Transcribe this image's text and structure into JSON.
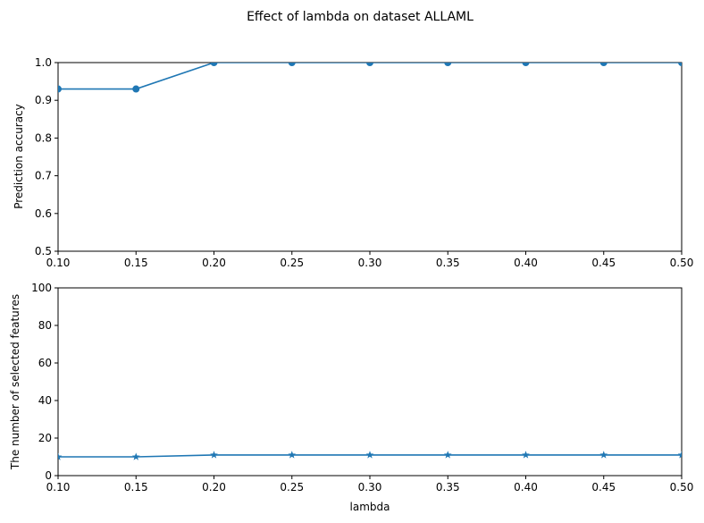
{
  "chart_data": [
    {
      "type": "line",
      "marker": "circle",
      "x": [
        0.1,
        0.15,
        0.2,
        0.25,
        0.3,
        0.35,
        0.4,
        0.45,
        0.5
      ],
      "series": [
        {
          "values": [
            0.93,
            0.93,
            1.0,
            1.0,
            1.0,
            1.0,
            1.0,
            1.0,
            1.0
          ],
          "color": "#1f77b4"
        }
      ],
      "xlim": [
        0.1,
        0.5
      ],
      "ylim": [
        0.5,
        1.0
      ],
      "xticks": [
        "0.10",
        "0.15",
        "0.20",
        "0.25",
        "0.30",
        "0.35",
        "0.40",
        "0.45",
        "0.50"
      ],
      "yticks": [
        "0.5",
        "0.6",
        "0.7",
        "0.8",
        "0.9",
        "1.0"
      ],
      "xlabel": "",
      "ylabel": "Prediction accuracy",
      "grid": false
    },
    {
      "type": "line",
      "marker": "star",
      "x": [
        0.1,
        0.15,
        0.2,
        0.25,
        0.3,
        0.35,
        0.4,
        0.45,
        0.5
      ],
      "series": [
        {
          "values": [
            10,
            10,
            11,
            11,
            11,
            11,
            11,
            11,
            11
          ],
          "color": "#1f77b4"
        }
      ],
      "xlim": [
        0.1,
        0.5
      ],
      "ylim": [
        0,
        100
      ],
      "xticks": [
        "0.10",
        "0.15",
        "0.20",
        "0.25",
        "0.30",
        "0.35",
        "0.40",
        "0.45",
        "0.50"
      ],
      "yticks": [
        "0",
        "20",
        "40",
        "60",
        "80",
        "100"
      ],
      "xlabel": "lambda",
      "ylabel": "The number of selected features",
      "grid": false
    }
  ],
  "figure": {
    "title": "Effect of lambda on dataset ALLAML"
  }
}
